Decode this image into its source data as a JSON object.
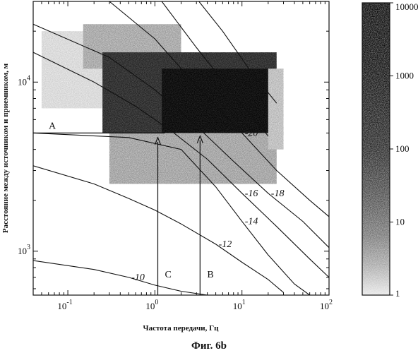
{
  "chart_data": [
    {
      "type": "heatmap",
      "title": "",
      "xlabel": "Частота передачи, Гц",
      "ylabel": "Расстояние между источником и приемником, м",
      "x_scale": "log",
      "y_scale": "log",
      "xlim": [
        0.04,
        100
      ],
      "ylim": [
        550,
        30000
      ],
      "x_ticks": [
        {
          "value": 0.1,
          "base": "10",
          "exp": "-1"
        },
        {
          "value": 1,
          "base": "10",
          "exp": "0"
        },
        {
          "value": 10,
          "base": "10",
          "exp": "1"
        },
        {
          "value": 100,
          "base": "10",
          "exp": "2"
        }
      ],
      "y_ticks": [
        {
          "value": 1000,
          "base": "10",
          "exp": "3"
        },
        {
          "value": 10000,
          "base": "10",
          "exp": "4"
        }
      ],
      "grid": false,
      "density_regions": [
        {
          "x": [
            0.05,
            0.25
          ],
          "y": [
            7000,
            20000
          ],
          "count": 3
        },
        {
          "x": [
            0.15,
            2.0
          ],
          "y": [
            12000,
            22000
          ],
          "count": 25
        },
        {
          "x": [
            0.25,
            25
          ],
          "y": [
            5000,
            15000
          ],
          "count": 3000
        },
        {
          "x": [
            1.2,
            20
          ],
          "y": [
            3500,
            12000
          ],
          "count": 10000
        },
        {
          "x": [
            0.3,
            25
          ],
          "y": [
            2500,
            5000
          ],
          "count": 30
        },
        {
          "x": [
            20,
            30
          ],
          "y": [
            4000,
            12000
          ],
          "count": 10
        }
      ],
      "contours": [
        {
          "label": "-10",
          "points": [
            [
              0.04,
              880
            ],
            [
              0.2,
              780
            ],
            [
              0.5,
              700
            ],
            [
              1,
              630
            ],
            [
              2,
              580
            ],
            [
              4,
              550
            ]
          ]
        },
        {
          "label": "-12",
          "points": [
            [
              0.04,
              3200
            ],
            [
              0.2,
              2500
            ],
            [
              0.5,
              2050
            ],
            [
              1,
              1750
            ],
            [
              2,
              1450
            ],
            [
              5,
              1100
            ],
            [
              10,
              860
            ],
            [
              20,
              680
            ],
            [
              30,
              570
            ]
          ]
        },
        {
          "label": "-14",
          "points": [
            [
              0.04,
              5000
            ],
            [
              0.5,
              4700
            ],
            [
              2,
              4000
            ],
            [
              5,
              2400
            ],
            [
              10,
              1500
            ],
            [
              20,
              950
            ],
            [
              40,
              640
            ],
            [
              60,
              550
            ]
          ]
        },
        {
          "label": "-16",
          "points": [
            [
              0.04,
              15000
            ],
            [
              0.2,
              10000
            ],
            [
              0.6,
              7200
            ],
            [
              1.5,
              5200
            ],
            [
              4,
              3500
            ],
            [
              10,
              2200
            ],
            [
              25,
              1400
            ],
            [
              60,
              900
            ],
            [
              100,
              700
            ]
          ]
        },
        {
          "label": "-18",
          "points": [
            [
              0.04,
              22000
            ],
            [
              0.3,
              14000
            ],
            [
              1,
              9000
            ],
            [
              3,
              5500
            ],
            [
              8,
              3400
            ],
            [
              20,
              2200
            ],
            [
              50,
              1500
            ],
            [
              100,
              1050
            ]
          ]
        },
        {
          "label": "-20",
          "points": [
            [
              0.3,
              30000
            ],
            [
              1,
              18000
            ],
            [
              3,
              9500
            ],
            [
              10,
              5000
            ],
            [
              25,
              3000
            ],
            [
              60,
              2000
            ],
            [
              100,
              1600
            ]
          ]
        },
        {
          "label": "",
          "points": [
            [
              1.2,
              30000
            ],
            [
              3,
              16000
            ],
            [
              8,
              8500
            ],
            [
              20,
              4800
            ]
          ]
        },
        {
          "label": "",
          "points": [
            [
              3.2,
              30000
            ],
            [
              6,
              20000
            ],
            [
              12,
              12000
            ],
            [
              25,
              7500
            ]
          ]
        }
      ],
      "markers": [
        {
          "label": "A",
          "type": "horizontal",
          "x0": 0.04,
          "x1": 1.3,
          "y": 5000
        },
        {
          "label": "C",
          "type": "vertical",
          "x": 1.08,
          "y0": 550,
          "y1": 4700
        },
        {
          "label": "B",
          "type": "vertical",
          "x": 3.3,
          "y0": 550,
          "y1": 4800
        }
      ]
    },
    {
      "type": "colorbar",
      "title": "",
      "scale": "log",
      "range": [
        1,
        10000
      ],
      "ticks": [
        {
          "value": 10000,
          "label": "10000"
        },
        {
          "value": 1000,
          "label": "1000"
        },
        {
          "value": 100,
          "label": "100"
        },
        {
          "value": 10,
          "label": "10"
        },
        {
          "value": 1,
          "label": "1"
        }
      ]
    }
  ],
  "caption": "Фиг. 6b"
}
